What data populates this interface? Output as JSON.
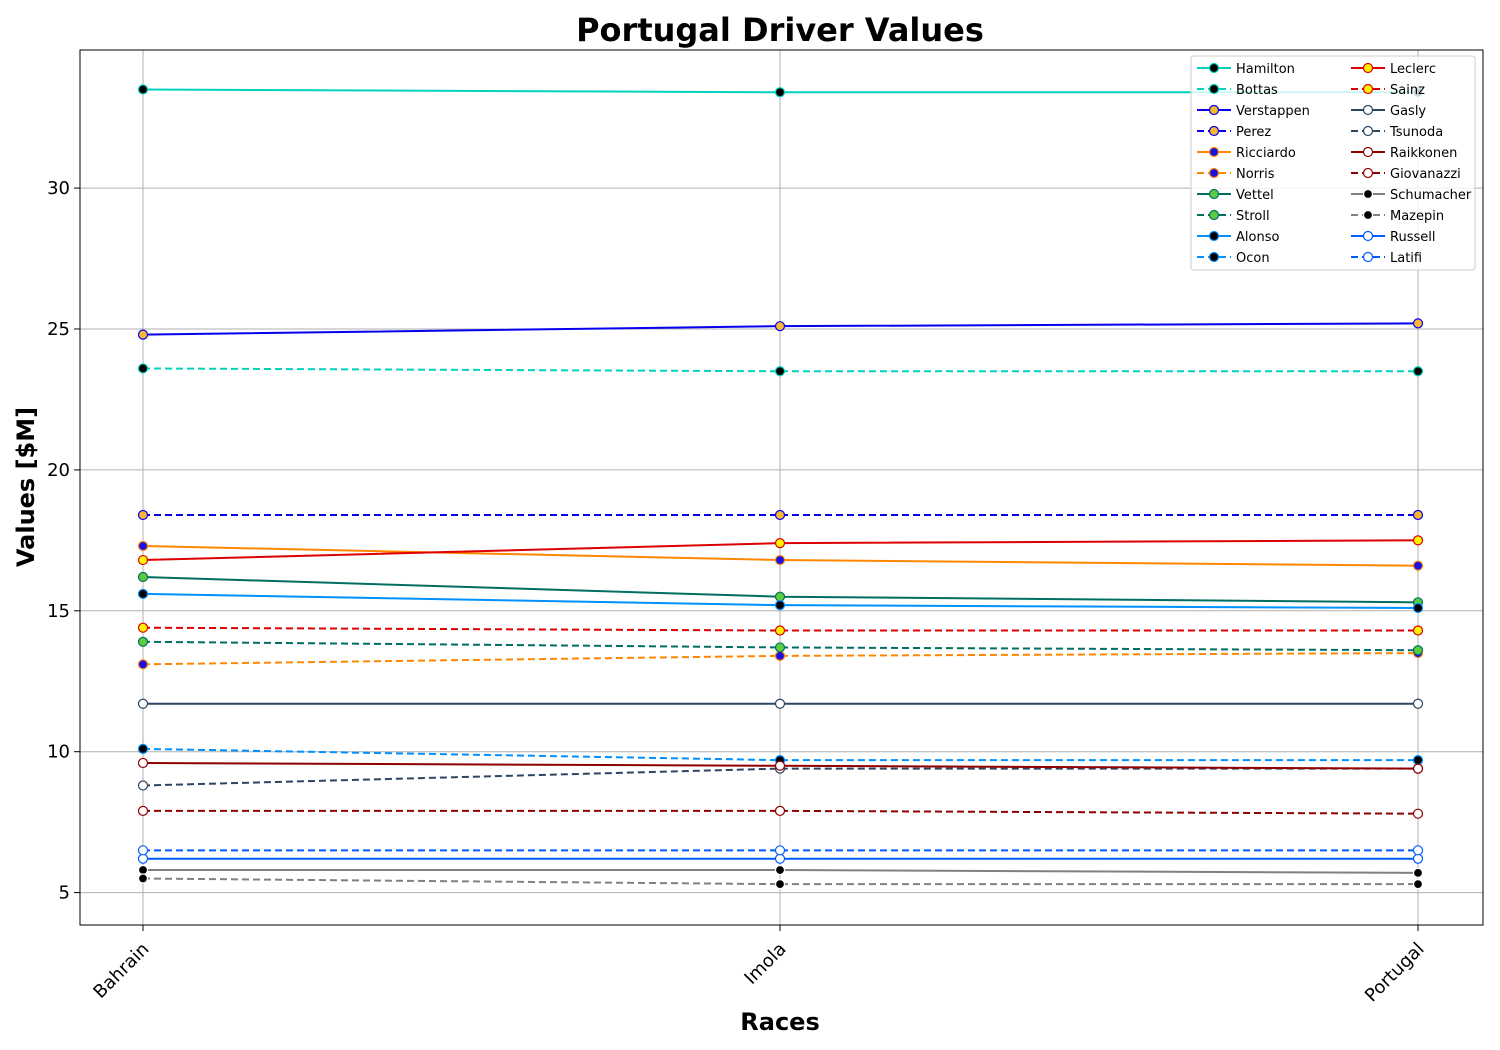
{
  "chart_data": {
    "type": "line",
    "title": "Portugal Driver Values",
    "xlabel": "Races",
    "ylabel": "Values [$M]",
    "categories": [
      "Bahrain",
      "Imola",
      "Portugal"
    ],
    "ylim": [
      3.85,
      34.9
    ],
    "yticks": [
      5,
      10,
      15,
      20,
      25,
      30
    ],
    "grid": true,
    "legend_position": "top-right",
    "legend_columns": 2,
    "series": [
      {
        "name": "Hamilton",
        "values": [
          33.5,
          33.4,
          33.4
        ],
        "color": "#00d2be",
        "dash": "solid",
        "marker_fill": "#000000",
        "marker_edge": "#00d2be"
      },
      {
        "name": "Bottas",
        "values": [
          23.6,
          23.5,
          23.5
        ],
        "color": "#00d2be",
        "dash": "dashed",
        "marker_fill": "#000000",
        "marker_edge": "#00d2be"
      },
      {
        "name": "Verstappen",
        "values": [
          24.8,
          25.1,
          25.2
        ],
        "color": "#0600ef",
        "dash": "solid",
        "marker_fill": "#f7b731",
        "marker_edge": "#0600ef"
      },
      {
        "name": "Perez",
        "values": [
          18.4,
          18.4,
          18.4
        ],
        "color": "#0600ef",
        "dash": "dashed",
        "marker_fill": "#f7b731",
        "marker_edge": "#0600ef"
      },
      {
        "name": "Ricciardo",
        "values": [
          17.3,
          16.8,
          16.6
        ],
        "color": "#ff8700",
        "dash": "solid",
        "marker_fill": "#1a10e8",
        "marker_edge": "#ff8700"
      },
      {
        "name": "Norris",
        "values": [
          13.1,
          13.4,
          13.5
        ],
        "color": "#ff8700",
        "dash": "dashed",
        "marker_fill": "#1a10e8",
        "marker_edge": "#ff8700"
      },
      {
        "name": "Vettel",
        "values": [
          16.2,
          15.5,
          15.3
        ],
        "color": "#006f62",
        "dash": "solid",
        "marker_fill": "#5ccc3e",
        "marker_edge": "#006f62"
      },
      {
        "name": "Stroll",
        "values": [
          13.9,
          13.7,
          13.6
        ],
        "color": "#006f62",
        "dash": "dashed",
        "marker_fill": "#5ccc3e",
        "marker_edge": "#006f62"
      },
      {
        "name": "Alonso",
        "values": [
          15.6,
          15.2,
          15.1
        ],
        "color": "#0090ff",
        "dash": "solid",
        "marker_fill": "#000000",
        "marker_edge": "#0090ff"
      },
      {
        "name": "Ocon",
        "values": [
          10.1,
          9.7,
          9.7
        ],
        "color": "#0090ff",
        "dash": "dashed",
        "marker_fill": "#000000",
        "marker_edge": "#0090ff"
      },
      {
        "name": "Leclerc",
        "values": [
          16.8,
          17.4,
          17.5
        ],
        "color": "#dc0000",
        "dash": "solid",
        "marker_fill": "#fff200",
        "marker_edge": "#dc0000"
      },
      {
        "name": "Sainz",
        "values": [
          14.4,
          14.3,
          14.3
        ],
        "color": "#dc0000",
        "dash": "dashed",
        "marker_fill": "#fff200",
        "marker_edge": "#dc0000"
      },
      {
        "name": "Gasly",
        "values": [
          11.7,
          11.7,
          11.7
        ],
        "color": "#2b4562",
        "dash": "solid",
        "marker_fill": "#ffffff",
        "marker_edge": "#2b4562"
      },
      {
        "name": "Tsunoda",
        "values": [
          8.8,
          9.4,
          9.4
        ],
        "color": "#2b4562",
        "dash": "dashed",
        "marker_fill": "#ffffff",
        "marker_edge": "#2b4562"
      },
      {
        "name": "Raikkonen",
        "values": [
          9.6,
          9.5,
          9.4
        ],
        "color": "#900000",
        "dash": "solid",
        "marker_fill": "#ffffff",
        "marker_edge": "#900000"
      },
      {
        "name": "Giovanazzi",
        "values": [
          7.9,
          7.9,
          7.8
        ],
        "color": "#900000",
        "dash": "dashed",
        "marker_fill": "#ffffff",
        "marker_edge": "#900000"
      },
      {
        "name": "Schumacher",
        "values": [
          5.8,
          5.8,
          5.7
        ],
        "color": "#808080",
        "dash": "solid",
        "marker_fill": "#000000",
        "marker_edge": "#ffffff"
      },
      {
        "name": "Mazepin",
        "values": [
          5.5,
          5.3,
          5.3
        ],
        "color": "#808080",
        "dash": "dashed",
        "marker_fill": "#000000",
        "marker_edge": "#ffffff"
      },
      {
        "name": "Russell",
        "values": [
          6.2,
          6.2,
          6.2
        ],
        "color": "#005aff",
        "dash": "solid",
        "marker_fill": "#ffffff",
        "marker_edge": "#005aff"
      },
      {
        "name": "Latifi",
        "values": [
          6.5,
          6.5,
          6.5
        ],
        "color": "#005aff",
        "dash": "dashed",
        "marker_fill": "#ffffff",
        "marker_edge": "#005aff"
      }
    ]
  }
}
